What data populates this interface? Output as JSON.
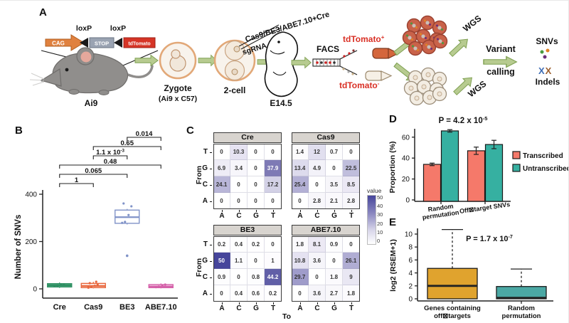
{
  "panels": {
    "a": "A",
    "b": "B",
    "c": "C",
    "d": "D",
    "e": "E"
  },
  "panel_a": {
    "loxp_left": "loxP",
    "loxp_right": "loxP",
    "cag": "CAG",
    "stop": "STOP",
    "tdtomato": "tdTomato",
    "mouse": "Ai9",
    "zygote": "Zygote",
    "zygote_cross": "(Ai9 x C57)",
    "two_cell": "2-cell",
    "injection_mix": "Cas9/BE3/ABE7.10+Cre",
    "sgrna": "sgRNA",
    "embryo_stage": "E14.5",
    "facs": "FACS",
    "tdtomato_pos": {
      "base": "tdTomato",
      "sign": "+"
    },
    "tdtomato_neg": {
      "base": "tdTomato",
      "sign": "-"
    },
    "wgs_top": "WGS",
    "wgs_bottom": "WGS",
    "variant_line1": "Variant",
    "variant_line2": "calling",
    "snvs": "SNVs",
    "xx": {
      "x1": "X",
      "x2": "X"
    },
    "indels": "Indels",
    "colors": {
      "cag": "#e0813f",
      "stop": "#9aa3b2",
      "tdtomato": "#d63426",
      "arrow": "#b7cb90",
      "tdtomato_text": "#d93025",
      "xx1": "#3e6db5",
      "xx2": "#9c5f2e",
      "snv_dots": [
        "#4a9a3f",
        "#e08326",
        "#6b2d7b"
      ]
    }
  },
  "chart_data": [
    {
      "panel": "B",
      "type": "boxplot",
      "ylabel": "Number of SNVs",
      "yticks": [
        0,
        200,
        400
      ],
      "ylim": [
        0,
        430
      ],
      "categories": [
        "Cre",
        "Cas9",
        "BE3",
        "ABE7.10"
      ],
      "boxes": [
        {
          "category": "Cre",
          "low": 4,
          "q1": 8,
          "median": 15,
          "q3": 22,
          "high": 27,
          "points": [
            12,
            14,
            17,
            19
          ],
          "outliers": [],
          "fill": "#57b487",
          "stroke": "#2f8f63"
        },
        {
          "category": "Cas9",
          "low": 2,
          "q1": 5,
          "median": 12,
          "q3": 23,
          "high": 30,
          "points": [
            5,
            9,
            13,
            18,
            24,
            30
          ],
          "outliers": [],
          "fill": "#fdeee7",
          "stroke": "#e8673d"
        },
        {
          "category": "BE3",
          "low": 272,
          "q1": 277,
          "median": 303,
          "q3": 333,
          "high": 338,
          "points": [
            279,
            283,
            312,
            349,
            361
          ],
          "outliers": [
            140
          ],
          "fill": "#ffffff",
          "stroke": "#8093c8"
        },
        {
          "category": "ABE7.10",
          "low": 2,
          "q1": 5,
          "median": 10,
          "q3": 18,
          "high": 23,
          "points": [
            7,
            10,
            14,
            18
          ],
          "outliers": [],
          "fill": "#f6d7ea",
          "stroke": "#d45fa8"
        }
      ],
      "comparisons": [
        {
          "a": 2,
          "b": 3,
          "p": "0.014"
        },
        {
          "a": 1,
          "b": 3,
          "p": "0.65"
        },
        {
          "a": 1,
          "b": 2,
          "p": "1.1 x 10^-3"
        },
        {
          "a": 0,
          "b": 3,
          "p": "0.48"
        },
        {
          "a": 0,
          "b": 2,
          "p": "0.065"
        },
        {
          "a": 0,
          "b": 1,
          "p": "1"
        }
      ]
    },
    {
      "panel": "C",
      "type": "heatmap",
      "from_label": "From",
      "to_label": "To",
      "rows": [
        "T",
        "G",
        "C",
        "A"
      ],
      "cols": [
        "A",
        "C",
        "G",
        "T"
      ],
      "legend": {
        "title": "value",
        "ticks": [
          50,
          40,
          30,
          20,
          10,
          0
        ]
      },
      "scale": {
        "min": 0,
        "max": 50,
        "color_min": "#ffffff",
        "color_max": "#46459b"
      },
      "matrices": [
        {
          "title": "Cre",
          "values": [
            [
              0,
              10.3,
              0,
              0
            ],
            [
              6.9,
              3.4,
              0,
              37.9
            ],
            [
              24.1,
              0,
              0,
              17.2
            ],
            [
              0,
              0,
              0,
              0
            ]
          ]
        },
        {
          "title": "Cas9",
          "values": [
            [
              1.4,
              12,
              0.7,
              0
            ],
            [
              13.4,
              4.9,
              0,
              22.5
            ],
            [
              25.4,
              0,
              3.5,
              8.5
            ],
            [
              0,
              2.8,
              2.1,
              2.8
            ]
          ]
        },
        {
          "title": "BE3",
          "values": [
            [
              0.2,
              0.4,
              0.2,
              0
            ],
            [
              50,
              1.1,
              0,
              1
            ],
            [
              0.9,
              0,
              0.8,
              44.2
            ],
            [
              0,
              0.4,
              0.6,
              0.2
            ]
          ]
        },
        {
          "title": "ABE7.10",
          "values": [
            [
              1.8,
              8.1,
              0.9,
              0
            ],
            [
              10.8,
              3.6,
              0,
              26.1
            ],
            [
              29.7,
              0,
              1.8,
              9
            ],
            [
              0,
              3.6,
              2.7,
              1.8
            ]
          ]
        }
      ]
    },
    {
      "panel": "D",
      "type": "bar",
      "title": "P = 4.2 x 10^-5",
      "ylabel": "Proportion (%)",
      "yticks": [
        0,
        20,
        40,
        60
      ],
      "ylim": [
        0,
        72
      ],
      "categories": [
        "Random\npermutation",
        "Off⊠target SNVs"
      ],
      "series": [
        {
          "name": "Transcribed",
          "color": "#f5796a",
          "values": [
            34,
            47
          ],
          "errors": [
            1.2,
            3.5
          ]
        },
        {
          "name": "Untranscribed",
          "color": "#36b0a1",
          "values": [
            66,
            53
          ],
          "errors": [
            1.2,
            4
          ]
        }
      ],
      "legend_position": "right"
    },
    {
      "panel": "E",
      "type": "boxplot",
      "title": "P = 1.7 x 10^-7",
      "ylabel": "log2 (RSEM+1)",
      "yticks": [
        0,
        2,
        4,
        6,
        8,
        10
      ],
      "ylim": [
        -0.3,
        11.2
      ],
      "categories": [
        "Genes containing\noff⊠targets",
        "Random\npermutation"
      ],
      "boxes": [
        {
          "low": 0,
          "q1": 0,
          "median": 2,
          "q3": 4.7,
          "high": 10.7,
          "whisker_style": "dashed",
          "fill": "#e0a32e",
          "stroke": "#1a1a1a"
        },
        {
          "low": 0,
          "q1": 0,
          "median": 0.15,
          "q3": 1.9,
          "high": 4.6,
          "whisker_style": "dashed",
          "fill": "#4ba8a4",
          "stroke": "#1a1a1a"
        }
      ]
    }
  ]
}
